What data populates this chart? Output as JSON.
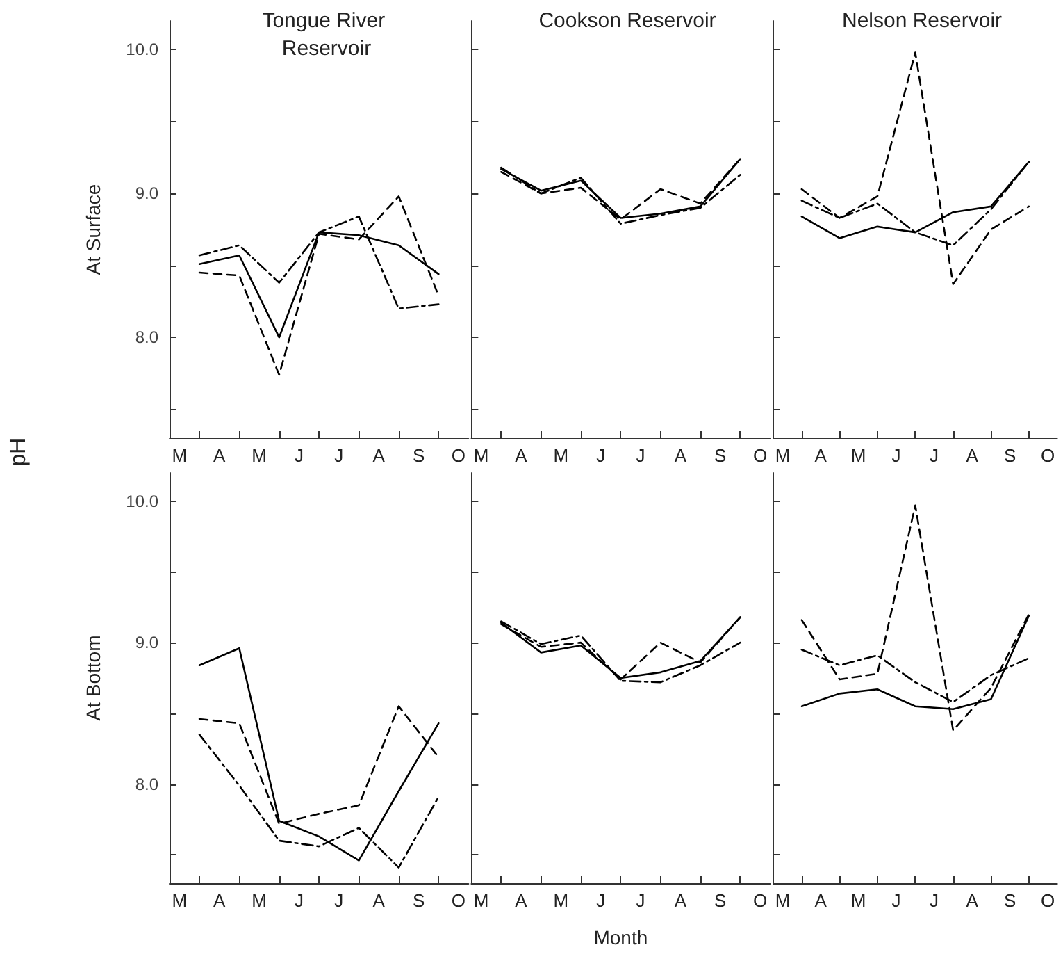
{
  "chart_data": [
    {
      "type": "line",
      "title": "Tongue River Reservoir",
      "ylabel": "At Surface",
      "annotations": [
        "pH"
      ],
      "categories": [
        "M",
        null,
        "A",
        null,
        "M",
        null,
        "J",
        null,
        "J",
        null,
        "A",
        null,
        "S",
        null,
        "O"
      ],
      "ylim": [
        7.3,
        10.2
      ],
      "yticks": [
        {
          "value": 7.5,
          "label": null
        },
        {
          "value": 8,
          "label": "8.0"
        },
        {
          "value": 8.5,
          "label": null
        },
        {
          "value": 9,
          "label": "9.0"
        },
        {
          "value": 9.5,
          "label": null
        },
        {
          "value": 10,
          "label": "10.0"
        }
      ],
      "series": [
        {
          "color": "#000000",
          "line_style": "solid",
          "values": [
            null,
            8.51,
            null,
            8.57,
            null,
            8.0,
            null,
            8.73,
            null,
            8.71,
            null,
            8.64,
            null,
            8.44,
            null
          ]
        },
        {
          "color": "#000000",
          "line_style": "dashed",
          "values": [
            null,
            8.45,
            null,
            8.43,
            null,
            7.74,
            null,
            8.72,
            null,
            8.68,
            null,
            8.98,
            null,
            8.29,
            null
          ]
        },
        {
          "color": "#000000",
          "line_style": "dashdot",
          "values": [
            null,
            8.57,
            null,
            8.64,
            null,
            8.38,
            null,
            8.73,
            null,
            8.84,
            null,
            8.2,
            null,
            8.23,
            null
          ]
        }
      ]
    },
    {
      "type": "line",
      "title": "Cookson Reservoir",
      "tick_labels": "x",
      "categories": [
        "M",
        null,
        "A",
        null,
        "M",
        null,
        "J",
        null,
        "J",
        null,
        "A",
        null,
        "S",
        null,
        "O"
      ],
      "ylim": [
        7.3,
        10.2
      ],
      "yticks": [
        {
          "value": 7.5,
          "label": null
        },
        {
          "value": 8,
          "label": "8.0"
        },
        {
          "value": 8.5,
          "label": null
        },
        {
          "value": 9,
          "label": "9.0"
        },
        {
          "value": 9.5,
          "label": null
        },
        {
          "value": 10,
          "label": "10.0"
        }
      ],
      "series": [
        {
          "color": "#000000",
          "line_style": "solid",
          "values": [
            null,
            9.17,
            null,
            9.02,
            null,
            9.09,
            null,
            8.83,
            null,
            8.86,
            null,
            8.91,
            null,
            9.24,
            null
          ]
        },
        {
          "color": "#000000",
          "line_style": "dashed",
          "values": [
            null,
            9.15,
            null,
            9.0,
            null,
            9.04,
            null,
            8.82,
            null,
            9.03,
            null,
            8.93,
            null,
            9.24,
            null
          ]
        },
        {
          "color": "#000000",
          "line_style": "dashdot",
          "values": [
            null,
            9.18,
            null,
            9.0,
            null,
            9.11,
            null,
            8.79,
            null,
            8.85,
            null,
            8.9,
            null,
            9.13,
            null
          ]
        }
      ]
    },
    {
      "type": "line",
      "title": "Nelson Reservoir",
      "tick_labels": "x",
      "categories": [
        "M",
        null,
        "A",
        null,
        "M",
        null,
        "J",
        null,
        "J",
        null,
        "A",
        null,
        "S",
        null,
        "O"
      ],
      "ylim": [
        7.3,
        10.2
      ],
      "yticks": [
        {
          "value": 7.5,
          "label": null
        },
        {
          "value": 8,
          "label": "8.0"
        },
        {
          "value": 8.5,
          "label": null
        },
        {
          "value": 9,
          "label": "9.0"
        },
        {
          "value": 9.5,
          "label": null
        },
        {
          "value": 10,
          "label": "10.0"
        }
      ],
      "series": [
        {
          "color": "#000000",
          "line_style": "solid",
          "values": [
            null,
            8.84,
            null,
            8.69,
            null,
            8.77,
            null,
            8.73,
            null,
            8.87,
            null,
            8.91,
            null,
            9.22,
            null
          ]
        },
        {
          "color": "#000000",
          "line_style": "dashed",
          "values": [
            null,
            9.03,
            null,
            8.83,
            null,
            8.98,
            null,
            9.98,
            null,
            8.37,
            null,
            8.75,
            null,
            8.91,
            null
          ]
        },
        {
          "color": "#000000",
          "line_style": "dashdot",
          "values": [
            null,
            8.95,
            null,
            8.83,
            null,
            8.93,
            null,
            8.73,
            null,
            8.64,
            null,
            8.89,
            null,
            9.22,
            null
          ]
        }
      ]
    },
    {
      "type": "line",
      "ylabel": "At Bottom",
      "categories": [
        "M",
        null,
        "A",
        null,
        "M",
        null,
        "J",
        null,
        "J",
        null,
        "A",
        null,
        "S",
        null,
        "O"
      ],
      "ylim": [
        7.3,
        10.2
      ],
      "yticks": [
        {
          "value": 7.5,
          "label": null
        },
        {
          "value": 8,
          "label": "8.0"
        },
        {
          "value": 8.5,
          "label": null
        },
        {
          "value": 9,
          "label": "9.0"
        },
        {
          "value": 9.5,
          "label": null
        },
        {
          "value": 10,
          "label": "10.0"
        }
      ],
      "series": [
        {
          "color": "#000000",
          "line_style": "solid",
          "values": [
            null,
            8.84,
            null,
            8.96,
            null,
            7.74,
            null,
            7.63,
            null,
            7.46,
            null,
            7.95,
            null,
            8.43,
            null
          ]
        },
        {
          "color": "#000000",
          "line_style": "dashed",
          "values": [
            null,
            8.46,
            null,
            8.43,
            null,
            7.72,
            null,
            7.79,
            null,
            7.85,
            null,
            8.55,
            null,
            8.19,
            null
          ]
        },
        {
          "color": "#000000",
          "line_style": "dashdot",
          "values": [
            null,
            8.35,
            null,
            7.99,
            null,
            7.6,
            null,
            7.56,
            null,
            7.69,
            null,
            7.41,
            null,
            7.91,
            null
          ]
        }
      ]
    },
    {
      "type": "line",
      "xlabel": "Month",
      "tick_labels": "x",
      "categories": [
        "M",
        null,
        "A",
        null,
        "M",
        null,
        "J",
        null,
        "J",
        null,
        "A",
        null,
        "S",
        null,
        "O"
      ],
      "ylim": [
        7.3,
        10.2
      ],
      "yticks": [
        {
          "value": 7.5,
          "label": null
        },
        {
          "value": 8,
          "label": "8.0"
        },
        {
          "value": 8.5,
          "label": null
        },
        {
          "value": 9,
          "label": "9.0"
        },
        {
          "value": 9.5,
          "label": null
        },
        {
          "value": 10,
          "label": "10.0"
        }
      ],
      "series": [
        {
          "color": "#000000",
          "line_style": "solid",
          "values": [
            null,
            9.14,
            null,
            8.93,
            null,
            8.98,
            null,
            8.75,
            null,
            8.79,
            null,
            8.87,
            null,
            9.18,
            null
          ]
        },
        {
          "color": "#000000",
          "line_style": "dashed",
          "values": [
            null,
            9.13,
            null,
            8.97,
            null,
            9.0,
            null,
            8.74,
            null,
            9.0,
            null,
            8.86,
            null,
            9.18,
            null
          ]
        },
        {
          "color": "#000000",
          "line_style": "dashdot",
          "values": [
            null,
            9.15,
            null,
            8.99,
            null,
            9.05,
            null,
            8.73,
            null,
            8.72,
            null,
            8.84,
            null,
            9.0,
            null
          ]
        }
      ]
    },
    {
      "type": "line",
      "tick_labels": "x",
      "categories": [
        "M",
        null,
        "A",
        null,
        "M",
        null,
        "J",
        null,
        "J",
        null,
        "A",
        null,
        "S",
        null,
        "O"
      ],
      "ylim": [
        7.3,
        10.2
      ],
      "yticks": [
        {
          "value": 7.5,
          "label": null
        },
        {
          "value": 8,
          "label": "8.0"
        },
        {
          "value": 8.5,
          "label": null
        },
        {
          "value": 9,
          "label": "9.0"
        },
        {
          "value": 9.5,
          "label": null
        },
        {
          "value": 10,
          "label": "10.0"
        }
      ],
      "series": [
        {
          "color": "#000000",
          "line_style": "solid",
          "values": [
            null,
            8.55,
            null,
            8.64,
            null,
            8.67,
            null,
            8.55,
            null,
            8.53,
            null,
            8.6,
            null,
            9.19,
            null
          ]
        },
        {
          "color": "#000000",
          "line_style": "dashed",
          "values": [
            null,
            9.16,
            null,
            8.74,
            null,
            8.78,
            null,
            9.97,
            null,
            8.38,
            null,
            8.68,
            null,
            9.2,
            null
          ]
        },
        {
          "color": "#000000",
          "line_style": "dashdot",
          "values": [
            null,
            8.95,
            null,
            8.84,
            null,
            8.91,
            null,
            8.72,
            null,
            8.58,
            null,
            8.77,
            null,
            8.89,
            null
          ]
        }
      ]
    }
  ]
}
